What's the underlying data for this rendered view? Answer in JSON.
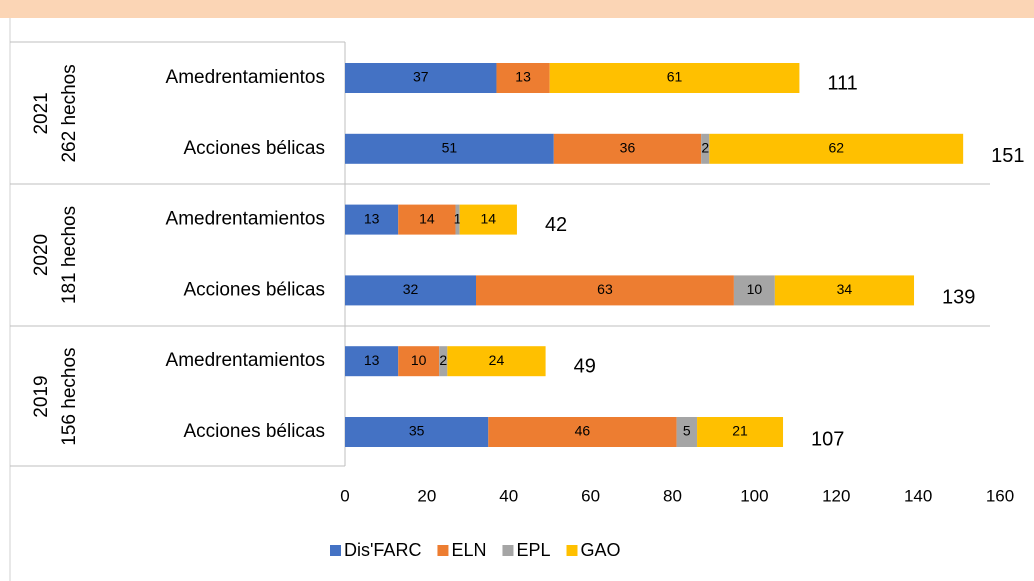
{
  "chart_data": {
    "type": "stacked-barh",
    "categories": [
      "Amedrentamientos",
      "Acciones bélicas",
      "Amedrentamientos",
      "Acciones bélicas",
      "Amedrentamientos",
      "Acciones bélicas"
    ],
    "groups": [
      {
        "year": "2021",
        "count": "262 hechos"
      },
      {
        "year": "2020",
        "count": "181 hechos"
      },
      {
        "year": "2019",
        "count": "156 hechos"
      }
    ],
    "series": [
      {
        "name": "Dis'FARC",
        "color": "#4472c4",
        "values": [
          37,
          51,
          13,
          32,
          13,
          35
        ]
      },
      {
        "name": "ELN",
        "color": "#ed7d31",
        "values": [
          13,
          36,
          14,
          63,
          10,
          46
        ]
      },
      {
        "name": "EPL",
        "color": "#a5a5a5",
        "values": [
          null,
          2,
          1,
          10,
          2,
          5
        ]
      },
      {
        "name": "GAO",
        "color": "#ffc000",
        "values": [
          61,
          62,
          14,
          34,
          24,
          21
        ]
      }
    ],
    "totals": [
      111,
      151,
      42,
      139,
      49,
      107
    ],
    "xlim": [
      0,
      160
    ],
    "xticks": [
      0,
      20,
      40,
      60,
      80,
      100,
      120,
      140,
      160
    ],
    "legend": "bottom"
  }
}
